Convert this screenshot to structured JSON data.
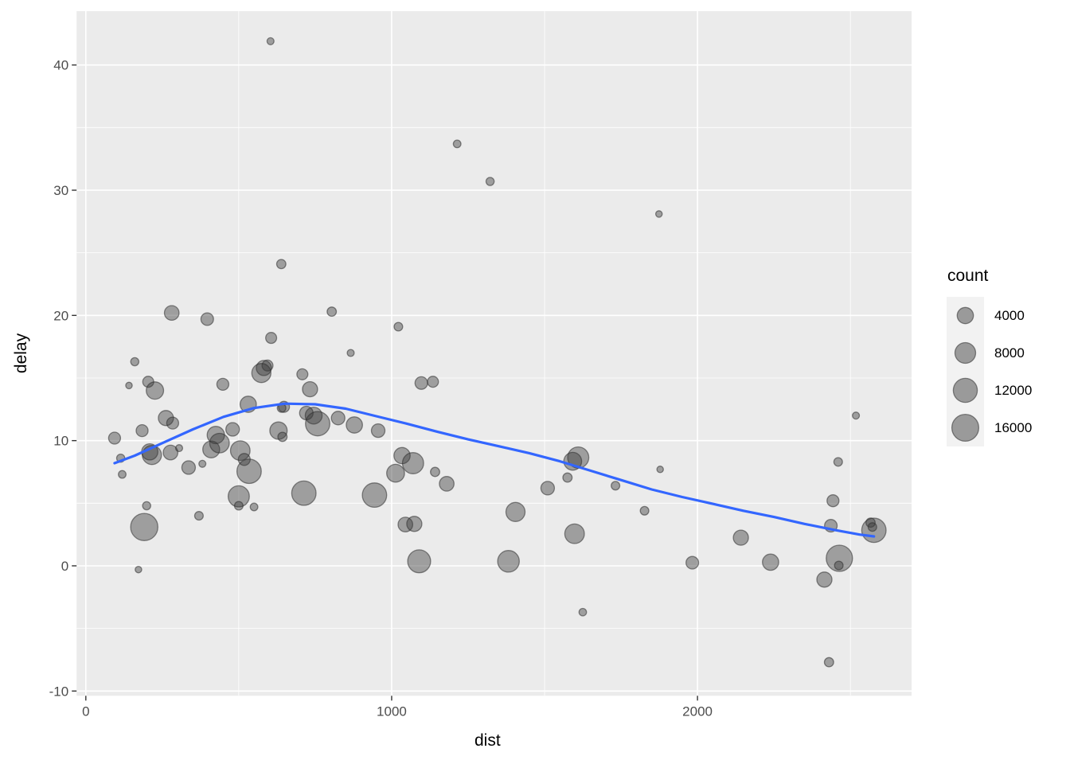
{
  "chart_data": {
    "type": "scatter",
    "title": "",
    "xlabel": "dist",
    "ylabel": "delay",
    "x_ticks": [
      0,
      1000,
      2000
    ],
    "x_tick_labels": [
      "0",
      "1000",
      "2000"
    ],
    "x_minor_ticks": [
      500,
      1500,
      2500
    ],
    "y_ticks": [
      -10,
      0,
      10,
      20,
      30,
      40
    ],
    "y_tick_labels": [
      "-10",
      "0",
      "10",
      "20",
      "30",
      "40"
    ],
    "y_minor_ticks": [
      -5,
      5,
      15,
      25,
      35
    ],
    "xlim": [
      -30.2,
      2700
    ],
    "ylim": [
      -10.38,
      44.3
    ],
    "grid": "white major and minor gridlines on gray panel",
    "legend": {
      "title": "count",
      "position": "right",
      "entries": [
        {
          "label": "4000",
          "value": 4000
        },
        {
          "label": "8000",
          "value": 8000
        },
        {
          "label": "12000",
          "value": 12000
        },
        {
          "label": "16000",
          "value": 16000
        }
      ]
    },
    "size_scale_note": "bubble radius px = 3.6 + 0.105*sqrt(count)",
    "series": [
      {
        "name": "destinations",
        "geom": "bubble",
        "columns": [
          "dist",
          "delay",
          "count"
        ],
        "points": [
          [
            604,
            41.9,
            60
          ],
          [
            1214,
            33.7,
            130
          ],
          [
            1322,
            30.7,
            210
          ],
          [
            1874,
            28.1,
            25
          ],
          [
            639,
            24.1,
            450
          ],
          [
            281,
            20.2,
            2850
          ],
          [
            397,
            19.7,
            1650
          ],
          [
            804,
            20.3,
            450
          ],
          [
            1022,
            19.1,
            300
          ],
          [
            606,
            18.2,
            960
          ],
          [
            866,
            17.0,
            60
          ],
          [
            160,
            16.3,
            210
          ],
          [
            594,
            16.0,
            960
          ],
          [
            582,
            15.8,
            3200
          ],
          [
            574,
            15.4,
            6400
          ],
          [
            708,
            15.3,
            960
          ],
          [
            141,
            14.4,
            20
          ],
          [
            204,
            14.7,
            960
          ],
          [
            226,
            14.0,
            4900
          ],
          [
            448,
            14.5,
            1360
          ],
          [
            1097,
            14.6,
            1660
          ],
          [
            1135,
            14.7,
            960
          ],
          [
            733,
            14.1,
            3200
          ],
          [
            531,
            12.9,
            3990
          ],
          [
            648,
            12.7,
            960
          ],
          [
            640,
            12.6,
            300
          ],
          [
            721,
            12.2,
            2180
          ],
          [
            745,
            12.0,
            4500
          ],
          [
            758,
            11.35,
            12500
          ],
          [
            825,
            11.8,
            2180
          ],
          [
            878,
            11.25,
            3990
          ],
          [
            956,
            10.8,
            2180
          ],
          [
            2518,
            12.0,
            60
          ],
          [
            262,
            11.8,
            3200
          ],
          [
            284,
            11.4,
            1360
          ],
          [
            184,
            10.8,
            1360
          ],
          [
            94,
            10.2,
            1360
          ],
          [
            209,
            9.1,
            3990
          ],
          [
            216,
            8.85,
            6400
          ],
          [
            277,
            9.05,
            2860
          ],
          [
            305,
            9.4,
            60
          ],
          [
            336,
            7.85,
            2180
          ],
          [
            381,
            8.15,
            60
          ],
          [
            119,
            7.3,
            130
          ],
          [
            114,
            8.6,
            210
          ],
          [
            410,
            9.3,
            4500
          ],
          [
            425,
            10.45,
            4900
          ],
          [
            437,
            9.8,
            6800
          ],
          [
            480,
            10.9,
            2180
          ],
          [
            505,
            9.2,
            6800
          ],
          [
            518,
            8.5,
            1360
          ],
          [
            630,
            10.8,
            4900
          ],
          [
            643,
            10.3,
            450
          ],
          [
            1034,
            8.8,
            3990
          ],
          [
            1070,
            8.2,
            8500
          ],
          [
            1013,
            7.4,
            5300
          ],
          [
            1142,
            7.5,
            450
          ],
          [
            1180,
            6.55,
            2860
          ],
          [
            534,
            7.55,
            12500
          ],
          [
            500,
            5.55,
            8500
          ],
          [
            500,
            4.8,
            300
          ],
          [
            550,
            4.7,
            130
          ],
          [
            199,
            4.8,
            210
          ],
          [
            191,
            3.1,
            16500
          ],
          [
            172,
            -0.3,
            20
          ],
          [
            370,
            4.0,
            300
          ],
          [
            713,
            5.8,
            12500
          ],
          [
            944,
            5.65,
            12500
          ],
          [
            1045,
            3.3,
            2860
          ],
          [
            1074,
            3.35,
            3200
          ],
          [
            1090,
            0.36,
            10500
          ],
          [
            1382,
            0.36,
            9000
          ],
          [
            1405,
            4.3,
            6400
          ],
          [
            1598,
            2.56,
            6830
          ],
          [
            1983,
            0.25,
            1660
          ],
          [
            1625,
            -3.7,
            100
          ],
          [
            1827,
            4.4,
            300
          ],
          [
            1732,
            6.4,
            300
          ],
          [
            1878,
            7.7,
            25
          ],
          [
            1510,
            6.2,
            2180
          ],
          [
            1575,
            7.05,
            450
          ],
          [
            1610,
            8.65,
            8500
          ],
          [
            1592,
            8.35,
            5300
          ],
          [
            2142,
            2.25,
            3200
          ],
          [
            2239,
            0.29,
            3990
          ],
          [
            2436,
            3.2,
            1660
          ],
          [
            2443,
            5.2,
            1360
          ],
          [
            2460,
            8.3,
            300
          ],
          [
            2464,
            0.6,
            15000
          ],
          [
            2462,
            0.03,
            300
          ],
          [
            2415,
            -1.1,
            3200
          ],
          [
            2430,
            -7.7,
            450
          ],
          [
            2566,
            3.45,
            455
          ],
          [
            2572,
            3.1,
            304
          ],
          [
            2577,
            2.84,
            12500
          ]
        ]
      },
      {
        "name": "smooth",
        "geom": "line",
        "columns": [
          "dist",
          "delay"
        ],
        "points": [
          [
            94,
            8.2
          ],
          [
            160,
            8.8
          ],
          [
            250,
            9.8
          ],
          [
            350,
            10.9
          ],
          [
            450,
            11.9
          ],
          [
            550,
            12.6
          ],
          [
            650,
            12.95
          ],
          [
            750,
            12.9
          ],
          [
            850,
            12.55
          ],
          [
            950,
            11.95
          ],
          [
            1050,
            11.35
          ],
          [
            1150,
            10.7
          ],
          [
            1250,
            10.1
          ],
          [
            1350,
            9.55
          ],
          [
            1450,
            9.0
          ],
          [
            1550,
            8.35
          ],
          [
            1650,
            7.6
          ],
          [
            1750,
            6.85
          ],
          [
            1850,
            6.1
          ],
          [
            1950,
            5.5
          ],
          [
            2050,
            4.95
          ],
          [
            2150,
            4.4
          ],
          [
            2250,
            3.9
          ],
          [
            2350,
            3.35
          ],
          [
            2450,
            2.85
          ],
          [
            2530,
            2.5
          ],
          [
            2577,
            2.35
          ]
        ]
      }
    ]
  },
  "colors": {
    "outer_background": "#FFFFFF",
    "panel_background": "#EBEBEB",
    "grid_major": "#FFFFFF",
    "grid_minor": "#FFFFFF",
    "bubble_fill": "rgba(55,55,55,0.43)",
    "bubble_stroke": "rgba(45,45,45,0.55)",
    "smooth_line": "#3366FF",
    "tick_text": "#4D4D4D",
    "tick_mark": "#333333",
    "axis_title_text": "#000000",
    "legend_key_background": "#F2F2F2",
    "legend_text": "#000000"
  },
  "axis": {
    "x_title": "dist",
    "y_title": "delay"
  },
  "legend_header": {
    "title": "count"
  }
}
